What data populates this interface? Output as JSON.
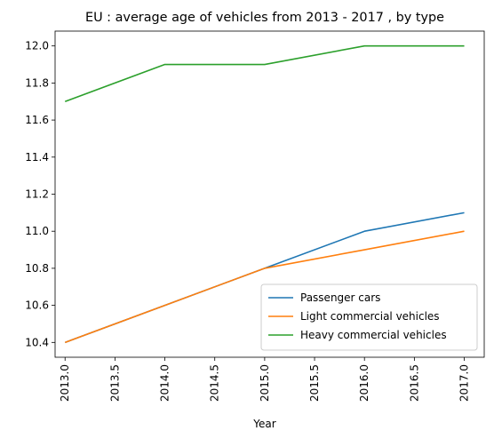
{
  "chart_data": {
    "type": "line",
    "title": "EU : average age of vehicles from 2013 - 2017 , by type",
    "xlabel": "Year",
    "ylabel": "",
    "x": [
      2013,
      2014,
      2015,
      2016,
      2017
    ],
    "series": [
      {
        "name": "Passenger cars",
        "color": "#1f77b4",
        "values": [
          10.4,
          10.6,
          10.8,
          11.0,
          11.1
        ]
      },
      {
        "name": "Light commercial vehicles",
        "color": "#ff7f0e",
        "values": [
          10.4,
          10.6,
          10.8,
          10.9,
          11.0
        ]
      },
      {
        "name": "Heavy commercial vehicles",
        "color": "#2ca02c",
        "values": [
          11.7,
          11.9,
          11.9,
          12.0,
          12.0
        ]
      }
    ],
    "xlim": [
      2012.9,
      2017.2
    ],
    "ylim": [
      10.32,
      12.08
    ],
    "x_ticks": [
      "2013.0",
      "2013.5",
      "2014.0",
      "2014.5",
      "2015.0",
      "2015.5",
      "2016.0",
      "2016.5",
      "2017.0"
    ],
    "y_ticks": [
      "10.4",
      "10.6",
      "10.8",
      "11.0",
      "11.2",
      "11.4",
      "11.6",
      "11.8",
      "12.0"
    ],
    "grid": false,
    "legend_position": "lower right"
  }
}
